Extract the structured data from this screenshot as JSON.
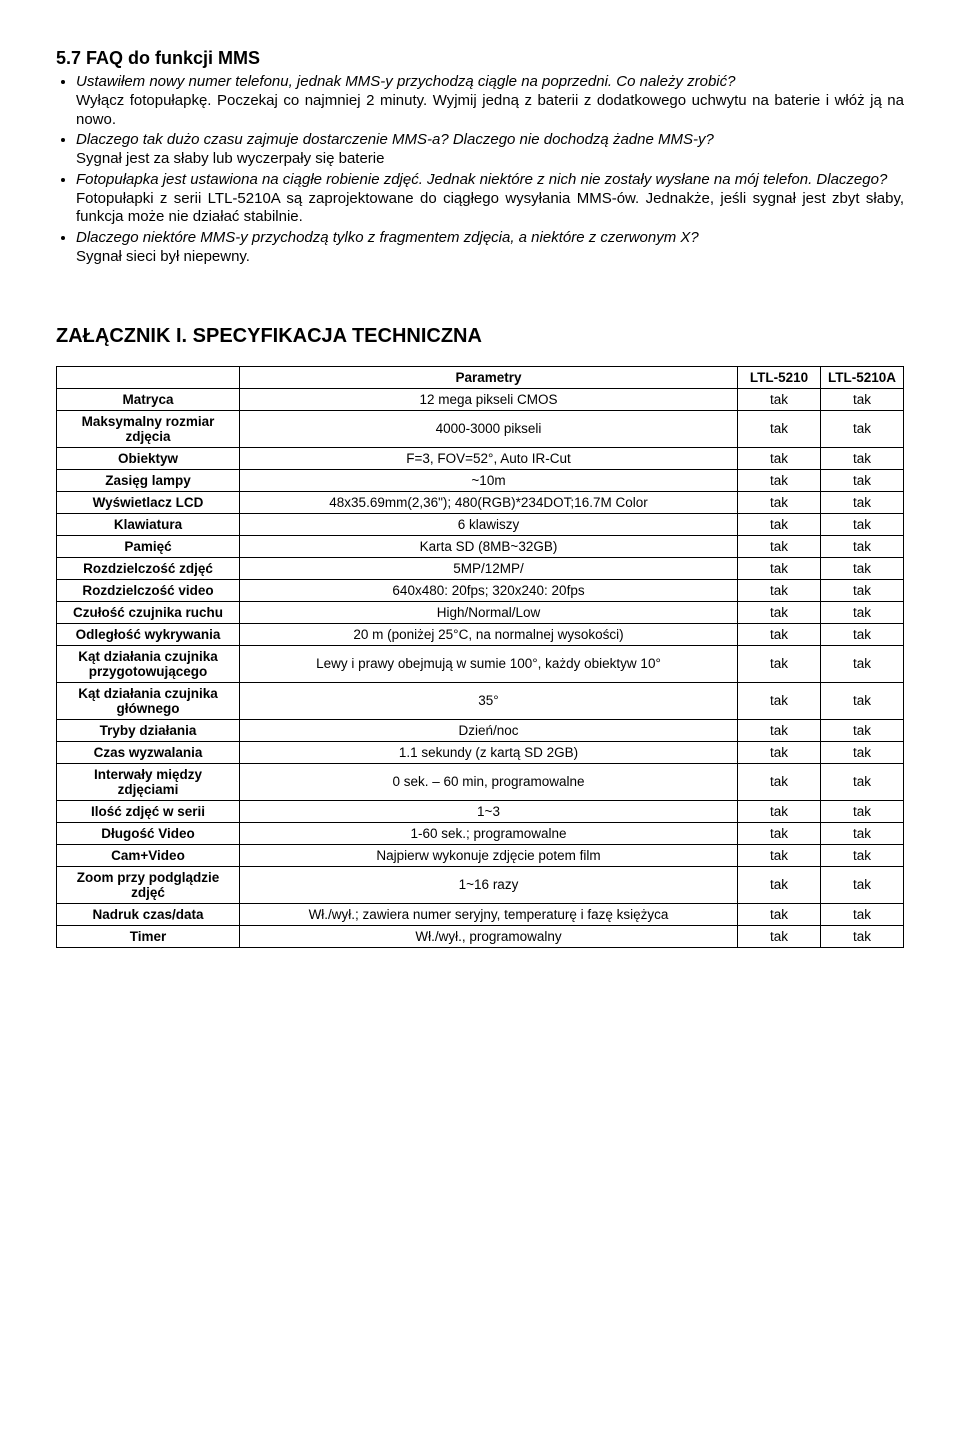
{
  "faq": {
    "heading": "5.7 FAQ do funkcji MMS",
    "items": [
      {
        "q": "Ustawiłem nowy numer telefonu, jednak MMS-y przychodzą ciągle na poprzedni. Co należy zrobić?",
        "a": "Wyłącz fotopułapkę. Poczekaj co najmniej 2 minuty. Wyjmij jedną z baterii z dodatkowego uchwytu na baterie i włóż ją na nowo."
      },
      {
        "q": "Dlaczego tak dużo czasu zajmuje dostarczenie MMS-a? Dlaczego nie dochodzą żadne MMS-y?",
        "a": "Sygnał jest za słaby lub wyczerpały się baterie"
      },
      {
        "q": "Fotopułapka jest ustawiona na ciągłe robienie zdjęć. Jednak niektóre z nich nie zostały wysłane na mój telefon. Dlaczego?",
        "a": "Fotopułapki z serii LTL-5210A są zaprojektowane do ciągłego wysyłania MMS-ów. Jednakże, jeśli sygnał jest zbyt słaby, funkcja może nie działać stabilnie."
      },
      {
        "q": "Dlaczego niektóre MMS-y przychodzą tylko z fragmentem zdjęcia, a niektóre z czerwonym X?",
        "a": "Sygnał sieci był niepewny."
      }
    ]
  },
  "appendix": {
    "heading": "ZAŁĄCZNIK I. SPECYFIKACJA TECHNICZNA",
    "headers": {
      "param": "Parametry",
      "col1": "LTL-5210",
      "col2": "LTL-5210A"
    },
    "tick": "tak",
    "rows": [
      {
        "label": "Matryca",
        "value": "12 mega pikseli CMOS"
      },
      {
        "label": "Maksymalny rozmiar zdjęcia",
        "value": "4000-3000 pikseli"
      },
      {
        "label": "Obiektyw",
        "value": "F=3, FOV=52°, Auto IR-Cut"
      },
      {
        "label": "Zasięg lampy",
        "value": "~10m"
      },
      {
        "label": "Wyświetlacz LCD",
        "value": "48x35.69mm(2,36\"); 480(RGB)*234DOT;16.7M Color"
      },
      {
        "label": "Klawiatura",
        "value": "6 klawiszy"
      },
      {
        "label": "Pamięć",
        "value": "Karta SD (8MB~32GB)"
      },
      {
        "label": "Rozdzielczość zdjęć",
        "value": "5MP/12MP/"
      },
      {
        "label": "Rozdzielczość video",
        "value": "640x480: 20fps; 320x240: 20fps"
      },
      {
        "label": "Czułość czujnika ruchu",
        "value": "High/Normal/Low"
      },
      {
        "label": "Odległość wykrywania",
        "value": "20 m (poniżej 25°C, na normalnej wysokości)"
      },
      {
        "label": "Kąt działania czujnika przygotowującego",
        "value": "Lewy i prawy obejmują w sumie 100°, każdy obiektyw 10°"
      },
      {
        "label": "Kąt działania czujnika głównego",
        "value": "35°"
      },
      {
        "label": "Tryby działania",
        "value": "Dzień/noc"
      },
      {
        "label": "Czas wyzwalania",
        "value": "1.1 sekundy (z kartą SD 2GB)"
      },
      {
        "label": "Interwały między zdjęciami",
        "value": "0 sek. – 60 min, programowalne"
      },
      {
        "label": "Ilość zdjęć w serii",
        "value": "1~3"
      },
      {
        "label": "Długość Video",
        "value": "1-60 sek.; programowalne"
      },
      {
        "label": "Cam+Video",
        "value": "Najpierw wykonuje zdjęcie potem film"
      },
      {
        "label": "Zoom przy podglądzie zdjęć",
        "value": "1~16 razy"
      },
      {
        "label": "Nadruk czas/data",
        "value": "Wł./wył.; zawiera numer seryjny, temperaturę i fazę księżyca"
      },
      {
        "label": "Timer",
        "value": "Wł./wył., programowalny"
      }
    ]
  }
}
